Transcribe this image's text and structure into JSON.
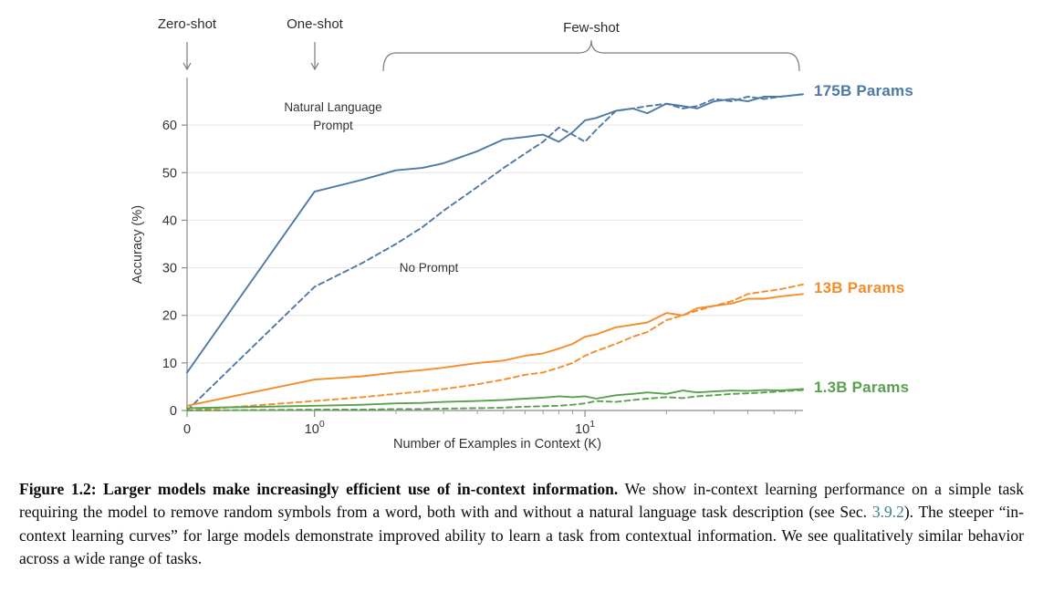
{
  "figure": {
    "annotations": {
      "zero_shot": "Zero-shot",
      "one_shot": "One-shot",
      "few_shot": "Few-shot",
      "natural_language_prompt_line1": "Natural Language",
      "natural_language_prompt_line2": "Prompt",
      "no_prompt": "No Prompt"
    },
    "series_labels": [
      {
        "label": "175B Params",
        "color": "#4E79A7"
      },
      {
        "label": "13B Params",
        "color": "#F28E2B"
      },
      {
        "label": "1.3B Params",
        "color": "#59A14F"
      }
    ]
  },
  "chart_data": {
    "type": "line",
    "title": "",
    "xlabel": "Number of Examples in Context  (K)",
    "ylabel": "Accuracy (%)",
    "xscale": "symlog",
    "xlim": [
      0,
      64
    ],
    "ylim": [
      0,
      70
    ],
    "grid": "horizontal",
    "legend_position": "right-outside",
    "yticks": [
      0,
      10,
      20,
      30,
      40,
      50,
      60
    ],
    "xticks": [
      {
        "value": 0,
        "label": "0"
      },
      {
        "value": 1,
        "label": "10",
        "exponent": "0"
      },
      {
        "value": 10,
        "label": "10",
        "exponent": "1"
      }
    ],
    "x": [
      0,
      1,
      1.5,
      2,
      2.5,
      3,
      4,
      5,
      6,
      7,
      8,
      9,
      10,
      11,
      13,
      15,
      17,
      20,
      23,
      26,
      30,
      35,
      40,
      46,
      53,
      64
    ],
    "series": [
      {
        "name": "175B Params — Natural Language Prompt",
        "model": "175B",
        "prompt": "Natural Language Prompt",
        "style": "solid",
        "color": "#4E79A7",
        "values": [
          8,
          46,
          48.5,
          50.5,
          51,
          52,
          54.5,
          57,
          57.5,
          58,
          56.5,
          58.5,
          61,
          61.5,
          63,
          63.5,
          62.5,
          64.5,
          64,
          63.5,
          65,
          65.5,
          65,
          66,
          66,
          66.5
        ]
      },
      {
        "name": "175B Params — No Prompt",
        "model": "175B",
        "prompt": "No Prompt",
        "style": "dashed",
        "color": "#4E79A7",
        "values": [
          0,
          26,
          31,
          35,
          38.5,
          42,
          47,
          51,
          54,
          56.5,
          59.5,
          58,
          56.5,
          59,
          63,
          63.5,
          64,
          64.5,
          63.5,
          64,
          65.5,
          65,
          66,
          65.5,
          66,
          66.5
        ]
      },
      {
        "name": "13B Params — Natural Language Prompt",
        "model": "13B",
        "prompt": "Natural Language Prompt",
        "style": "solid",
        "color": "#F28E2B",
        "values": [
          1,
          6.5,
          7.2,
          8,
          8.5,
          9,
          10,
          10.5,
          11.5,
          12,
          13,
          14,
          15.5,
          16,
          17.5,
          18,
          18.5,
          20.5,
          20,
          21.5,
          22,
          22.5,
          23.5,
          23.5,
          24,
          24.5
        ]
      },
      {
        "name": "13B Params — No Prompt",
        "model": "13B",
        "prompt": "No Prompt",
        "style": "dashed",
        "color": "#F28E2B",
        "values": [
          0,
          2,
          2.8,
          3.5,
          4,
          4.5,
          5.5,
          6.5,
          7.5,
          8,
          9,
          10,
          11.5,
          12.5,
          14,
          15.5,
          16.5,
          19,
          20,
          21,
          22,
          23,
          24.5,
          25,
          25.5,
          26.5
        ]
      },
      {
        "name": "1.3B Params — Natural Language Prompt",
        "model": "1.3B",
        "prompt": "Natural Language Prompt",
        "style": "solid",
        "color": "#59A14F",
        "values": [
          0.5,
          1,
          1.2,
          1.5,
          1.6,
          1.8,
          2,
          2.2,
          2.5,
          2.7,
          3,
          2.8,
          3,
          2.5,
          3.2,
          3.5,
          3.8,
          3.5,
          4.2,
          3.8,
          4,
          4.2,
          4.1,
          4.3,
          4.2,
          4.5
        ]
      },
      {
        "name": "1.3B Params — No Prompt",
        "model": "1.3B",
        "prompt": "No Prompt",
        "style": "dashed",
        "color": "#59A14F",
        "values": [
          0,
          0.2,
          0.2,
          0.3,
          0.3,
          0.4,
          0.5,
          0.6,
          0.8,
          0.9,
          1,
          1.2,
          1.5,
          2,
          1.8,
          2.2,
          2.5,
          2.8,
          2.6,
          3,
          3.2,
          3.5,
          3.6,
          3.8,
          4,
          4.3
        ]
      }
    ]
  },
  "caption": {
    "bold": "Figure 1.2: Larger models make increasingly efficient use of in-context information.",
    "text_before_link": " We show in-context learning performance on a simple task requiring the model to remove random symbols from a word, both with and without a natural language task description (see Sec. ",
    "link": "3.9.2",
    "text_after_link": "). The steeper “in-context learning curves” for large models demonstrate improved ability to learn a task from contextual information. We see qualitatively similar behavior across a wide range of tasks.",
    "link_color": "#38808F"
  }
}
